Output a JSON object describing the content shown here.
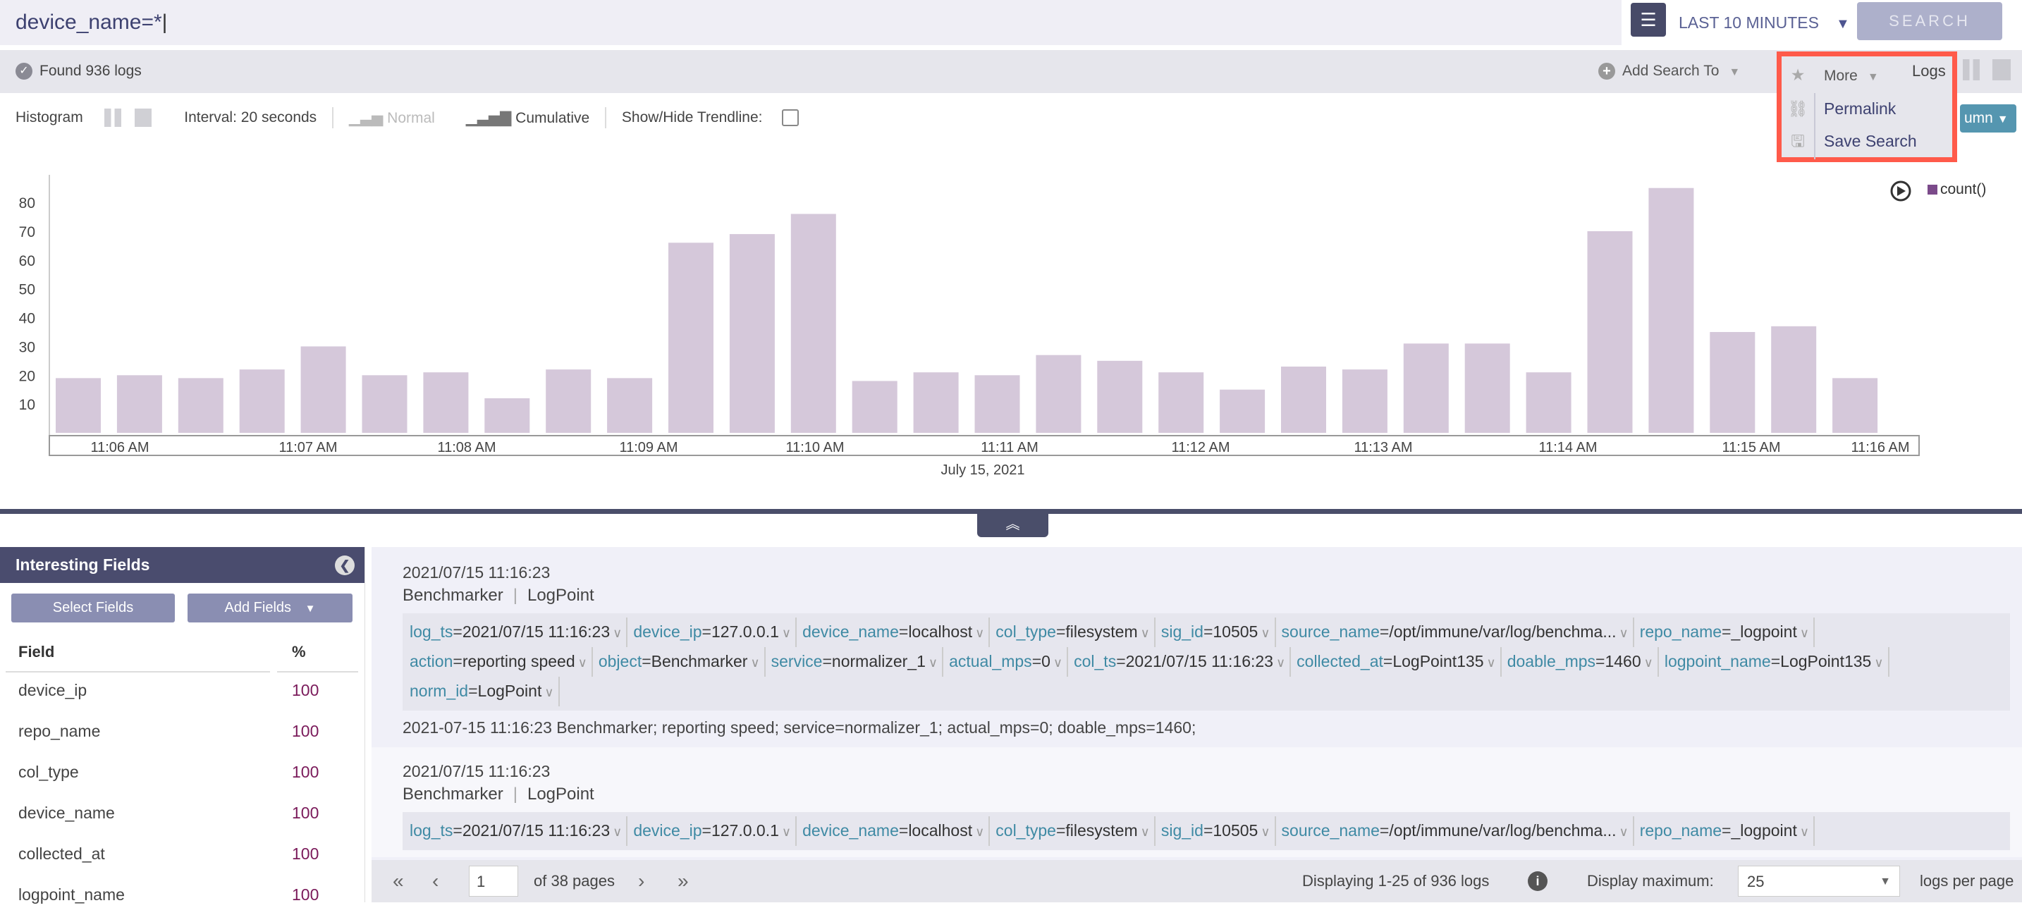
{
  "search": {
    "query": "device_name=*",
    "time_range": "LAST 10 MINUTES",
    "search_label": "SEARCH"
  },
  "status": {
    "found": "Found 936 logs",
    "add_search_to": "Add Search To",
    "more": "More",
    "logs": "Logs"
  },
  "more_menu": {
    "items": [
      {
        "label": "Permalink",
        "icon": "link-icon"
      },
      {
        "label": "Save Search",
        "icon": "floppy-icon"
      }
    ]
  },
  "column_button": "umn",
  "toolbar": {
    "histogram": "Histogram",
    "interval": "Interval: 20 seconds",
    "normal": "Normal",
    "cumulative": "Cumulative",
    "trendline": "Show/Hide Trendline:",
    "trendline_checked": false
  },
  "chart_data": {
    "type": "bar",
    "series": [
      {
        "name": "count()",
        "values": [
          19,
          20,
          19,
          22,
          30,
          20,
          21,
          12,
          22,
          19,
          66,
          69,
          76,
          18,
          21,
          20,
          27,
          25,
          21,
          15,
          23,
          22,
          31,
          31,
          21,
          70,
          85,
          35,
          37,
          19
        ]
      }
    ],
    "y_ticks": [
      10,
      20,
      30,
      40,
      50,
      60,
      70,
      80
    ],
    "x_ticks": [
      "11:06 AM",
      "11:07 AM",
      "11:08 AM",
      "11:09 AM",
      "11:10 AM",
      "11:11 AM",
      "11:12 AM",
      "11:13 AM",
      "11:14 AM",
      "11:15 AM",
      "11:16 AM"
    ],
    "xlabel": "July 15, 2021",
    "bar_color": "#d5c8da",
    "legend_position": "top-right"
  },
  "sidebar": {
    "title": "Interesting Fields",
    "select_fields": "Select Fields",
    "add_fields": "Add Fields",
    "col_field": "Field",
    "col_pct": "%",
    "fields": [
      {
        "name": "device_ip",
        "pct": "100"
      },
      {
        "name": "repo_name",
        "pct": "100"
      },
      {
        "name": "col_type",
        "pct": "100"
      },
      {
        "name": "device_name",
        "pct": "100"
      },
      {
        "name": "collected_at",
        "pct": "100"
      },
      {
        "name": "logpoint_name",
        "pct": "100"
      }
    ]
  },
  "logs": [
    {
      "ts": "2021/07/15 11:16:23",
      "source": "Benchmarker",
      "collector": "LogPoint",
      "fields": [
        [
          "log_ts",
          "2021/07/15 11:16:23"
        ],
        [
          "device_ip",
          "127.0.0.1"
        ],
        [
          "device_name",
          "localhost"
        ],
        [
          "col_type",
          "filesystem"
        ],
        [
          "sig_id",
          "10505"
        ],
        [
          "source_name",
          "/opt/immune/var/log/benchma..."
        ],
        [
          "repo_name",
          "_logpoint"
        ],
        [
          "action",
          "reporting speed"
        ],
        [
          "object",
          "Benchmarker"
        ],
        [
          "service",
          "normalizer_1"
        ],
        [
          "actual_mps",
          "0"
        ],
        [
          "col_ts",
          "2021/07/15 11:16:23"
        ],
        [
          "collected_at",
          "LogPoint135"
        ],
        [
          "doable_mps",
          "1460"
        ],
        [
          "logpoint_name",
          "LogPoint135"
        ],
        [
          "norm_id",
          "LogPoint"
        ]
      ],
      "message": "2021-07-15 11:16:23 Benchmarker; reporting speed; service=normalizer_1; actual_mps=0; doable_mps=1460;"
    },
    {
      "ts": "2021/07/15 11:16:23",
      "source": "Benchmarker",
      "collector": "LogPoint",
      "fields": [
        [
          "log_ts",
          "2021/07/15 11:16:23"
        ],
        [
          "device_ip",
          "127.0.0.1"
        ],
        [
          "device_name",
          "localhost"
        ],
        [
          "col_type",
          "filesystem"
        ],
        [
          "sig_id",
          "10505"
        ],
        [
          "source_name",
          "/opt/immune/var/log/benchma..."
        ],
        [
          "repo_name",
          "_logpoint"
        ]
      ]
    }
  ],
  "pager": {
    "page": "1",
    "of_pages": "of 38 pages",
    "displaying": "Displaying 1-25 of 936 logs",
    "display_max_label": "Display maximum:",
    "display_max": "25",
    "per_page": "logs per page"
  }
}
